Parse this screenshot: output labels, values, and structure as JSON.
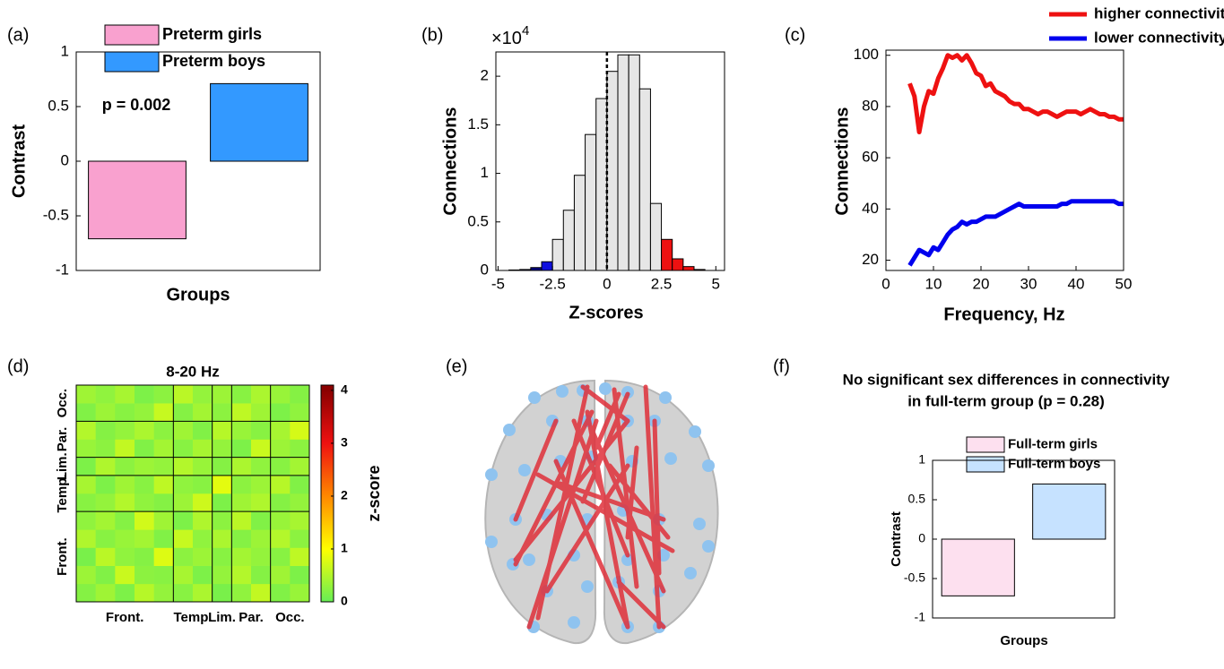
{
  "chart_data": [
    {
      "type": "bar",
      "panel_label": "(a)",
      "categories": [
        null
      ],
      "series": [
        {
          "name": "Preterm girls",
          "color": "#f9a1cf",
          "values": [
            -0.71
          ]
        },
        {
          "name": "Preterm boys",
          "color": "#3399ff",
          "values": [
            0.71
          ]
        }
      ],
      "annotation": "p = 0.002",
      "xlabel": "Groups",
      "ylabel": "Contrast",
      "ylim": [
        -1,
        1
      ],
      "yticks": [
        -1,
        -0.5,
        0,
        0.5,
        1
      ]
    },
    {
      "type": "histogram",
      "panel_label": "(b)",
      "xlabel": "Z-scores",
      "ylabel": "Connections",
      "y_scale_label": "×10",
      "y_scale_exponent": "4",
      "bins": [
        -4.5,
        -4,
        -3.5,
        -3,
        -2.5,
        -2,
        -1.5,
        -1,
        -0.5,
        0,
        0.5,
        1,
        1.5,
        2,
        2.5,
        3,
        3.5,
        4,
        4.5
      ],
      "values": [
        0.005,
        0.01,
        0.03,
        0.09,
        0.32,
        0.62,
        0.98,
        1.4,
        1.77,
        2.05,
        2.22,
        2.22,
        1.87,
        0.69,
        0.32,
        0.12,
        0.04,
        0.01
      ],
      "colors": [
        "#000000",
        "#000080",
        "#000080",
        "#1010dd",
        "#e6e6e6",
        "#e6e6e6",
        "#e6e6e6",
        "#e6e6e6",
        "#e6e6e6",
        "#e6e6e6",
        "#e6e6e6",
        "#e6e6e6",
        "#e6e6e6",
        "#e6e6e6",
        "#ee1111",
        "#ee1111",
        "#ee1111",
        "#660000"
      ],
      "dashed_line_x": 0,
      "xlim": [
        -5.1,
        5.4
      ],
      "xticks": [
        -5,
        -2.5,
        0,
        2.5,
        5
      ],
      "ylim": [
        0,
        2.25
      ],
      "yticks": [
        0,
        0.5,
        1,
        1.5,
        2
      ]
    },
    {
      "type": "line",
      "panel_label": "(c)",
      "xlabel": "Frequency, Hz",
      "ylabel": "Connections",
      "x": [
        5,
        6,
        7,
        8,
        9,
        10,
        11,
        12,
        13,
        14,
        15,
        16,
        17,
        18,
        19,
        20,
        21,
        22,
        23,
        24,
        25,
        26,
        27,
        28,
        29,
        30,
        31,
        32,
        33,
        34,
        35,
        36,
        37,
        38,
        39,
        40,
        41,
        42,
        43,
        44,
        45,
        46,
        47,
        48,
        49,
        50
      ],
      "series": [
        {
          "name": "higher connectivity",
          "color": "#ee1111",
          "values": [
            89,
            84,
            70,
            80,
            86,
            85,
            91,
            95,
            100,
            99,
            100,
            98,
            100,
            97,
            93,
            92,
            88,
            89,
            86,
            85,
            84,
            82,
            81,
            81,
            79,
            79,
            78,
            77,
            78,
            78,
            77,
            76,
            77,
            78,
            78,
            78,
            77,
            78,
            79,
            78,
            77,
            77,
            76,
            76,
            75,
            75
          ]
        },
        {
          "name": "lower connectivity",
          "color": "#0000ee",
          "values": [
            18,
            21,
            24,
            23,
            22,
            25,
            24,
            27,
            30,
            32,
            33,
            35,
            34,
            35,
            35,
            36,
            37,
            37,
            37,
            38,
            39,
            40,
            41,
            42,
            41,
            41,
            41,
            41,
            41,
            41,
            41,
            41,
            42,
            42,
            43,
            43,
            43,
            43,
            43,
            43,
            43,
            43,
            43,
            43,
            42,
            42
          ]
        }
      ],
      "xlim": [
        0,
        50
      ],
      "xticks": [
        0,
        10,
        20,
        30,
        40,
        50
      ],
      "ylim": [
        16,
        102
      ],
      "yticks": [
        20,
        40,
        60,
        80,
        100
      ]
    },
    {
      "type": "heatmap",
      "panel_label": "(d)",
      "title": "8-20 Hz",
      "labels": [
        "Front.",
        "Temp.",
        "Lim.",
        "Par.",
        "Occ."
      ],
      "block_edges": [
        5,
        7,
        8,
        10
      ],
      "matrix": [
        [
          0.8,
          1.5,
          0.6,
          2.1,
          1.2,
          0.9,
          1.8,
          0.5,
          1.1,
          2.4,
          0.7,
          1.3
        ],
        [
          1.4,
          0.7,
          2.6,
          1.0,
          0.9,
          1.7,
          0.6,
          1.2,
          2.0,
          0.8,
          1.5,
          0.6
        ],
        [
          0.5,
          2.2,
          1.1,
          0.8,
          3.1,
          1.0,
          1.4,
          0.9,
          1.6,
          1.2,
          0.9,
          2.3
        ],
        [
          1.9,
          0.9,
          1.3,
          1.6,
          0.7,
          2.5,
          1.1,
          1.8,
          0.8,
          1.4,
          2.0,
          1.0
        ],
        [
          1.1,
          1.6,
          0.8,
          2.8,
          1.5,
          0.6,
          1.9,
          1.0,
          2.2,
          0.7,
          1.3,
          1.7
        ],
        [
          0.9,
          1.2,
          2.0,
          1.1,
          0.8,
          1.4,
          2.7,
          0.6,
          1.5,
          1.9,
          0.8,
          1.2
        ],
        [
          1.7,
          0.6,
          1.5,
          0.9,
          2.3,
          1.1,
          0.9,
          3.3,
          1.0,
          1.4,
          2.1,
          0.7
        ],
        [
          0.6,
          1.9,
          1.0,
          1.4,
          1.2,
          2.0,
          1.3,
          0.8,
          1.8,
          1.1,
          0.9,
          1.6
        ],
        [
          1.3,
          1.0,
          2.4,
          0.7,
          1.6,
          0.9,
          1.7,
          1.2,
          0.6,
          2.6,
          1.4,
          1.0
        ],
        [
          2.0,
          0.8,
          1.2,
          1.8,
          1.0,
          1.5,
          0.7,
          2.1,
          1.3,
          0.9,
          1.7,
          2.9
        ],
        [
          0.7,
          1.4,
          0.9,
          1.2,
          2.5,
          0.8,
          1.6,
          1.0,
          2.3,
          1.5,
          0.6,
          1.1
        ],
        [
          1.5,
          1.1,
          1.7,
          0.6,
          1.0,
          2.2,
          1.2,
          1.4,
          0.9,
          1.8,
          1.3,
          0.8
        ]
      ],
      "colormap": [
        "#66ee55",
        "#ffff00",
        "#ff8800",
        "#ee1111",
        "#8b0000"
      ],
      "colorbar_label": "z-score",
      "clim": [
        0,
        4.1
      ],
      "cticks": [
        0,
        1,
        2,
        3,
        4
      ]
    },
    {
      "type": "network",
      "panel_label": "(e)"
    },
    {
      "type": "bar",
      "panel_label": "(f)",
      "title": [
        "No significant sex differences in connectivity",
        "in full-term group (p = 0.28)"
      ],
      "categories": [
        null
      ],
      "series": [
        {
          "name": "Full-term girls",
          "color": "#fde0ef",
          "values": [
            -0.72
          ]
        },
        {
          "name": "Full-term boys",
          "color": "#c6e2ff",
          "values": [
            0.7
          ]
        }
      ],
      "xlabel": "Groups",
      "ylabel": "Contrast",
      "ylim": [
        -1,
        1
      ],
      "yticks": [
        -1,
        -0.5,
        0,
        0.5,
        1
      ]
    }
  ]
}
